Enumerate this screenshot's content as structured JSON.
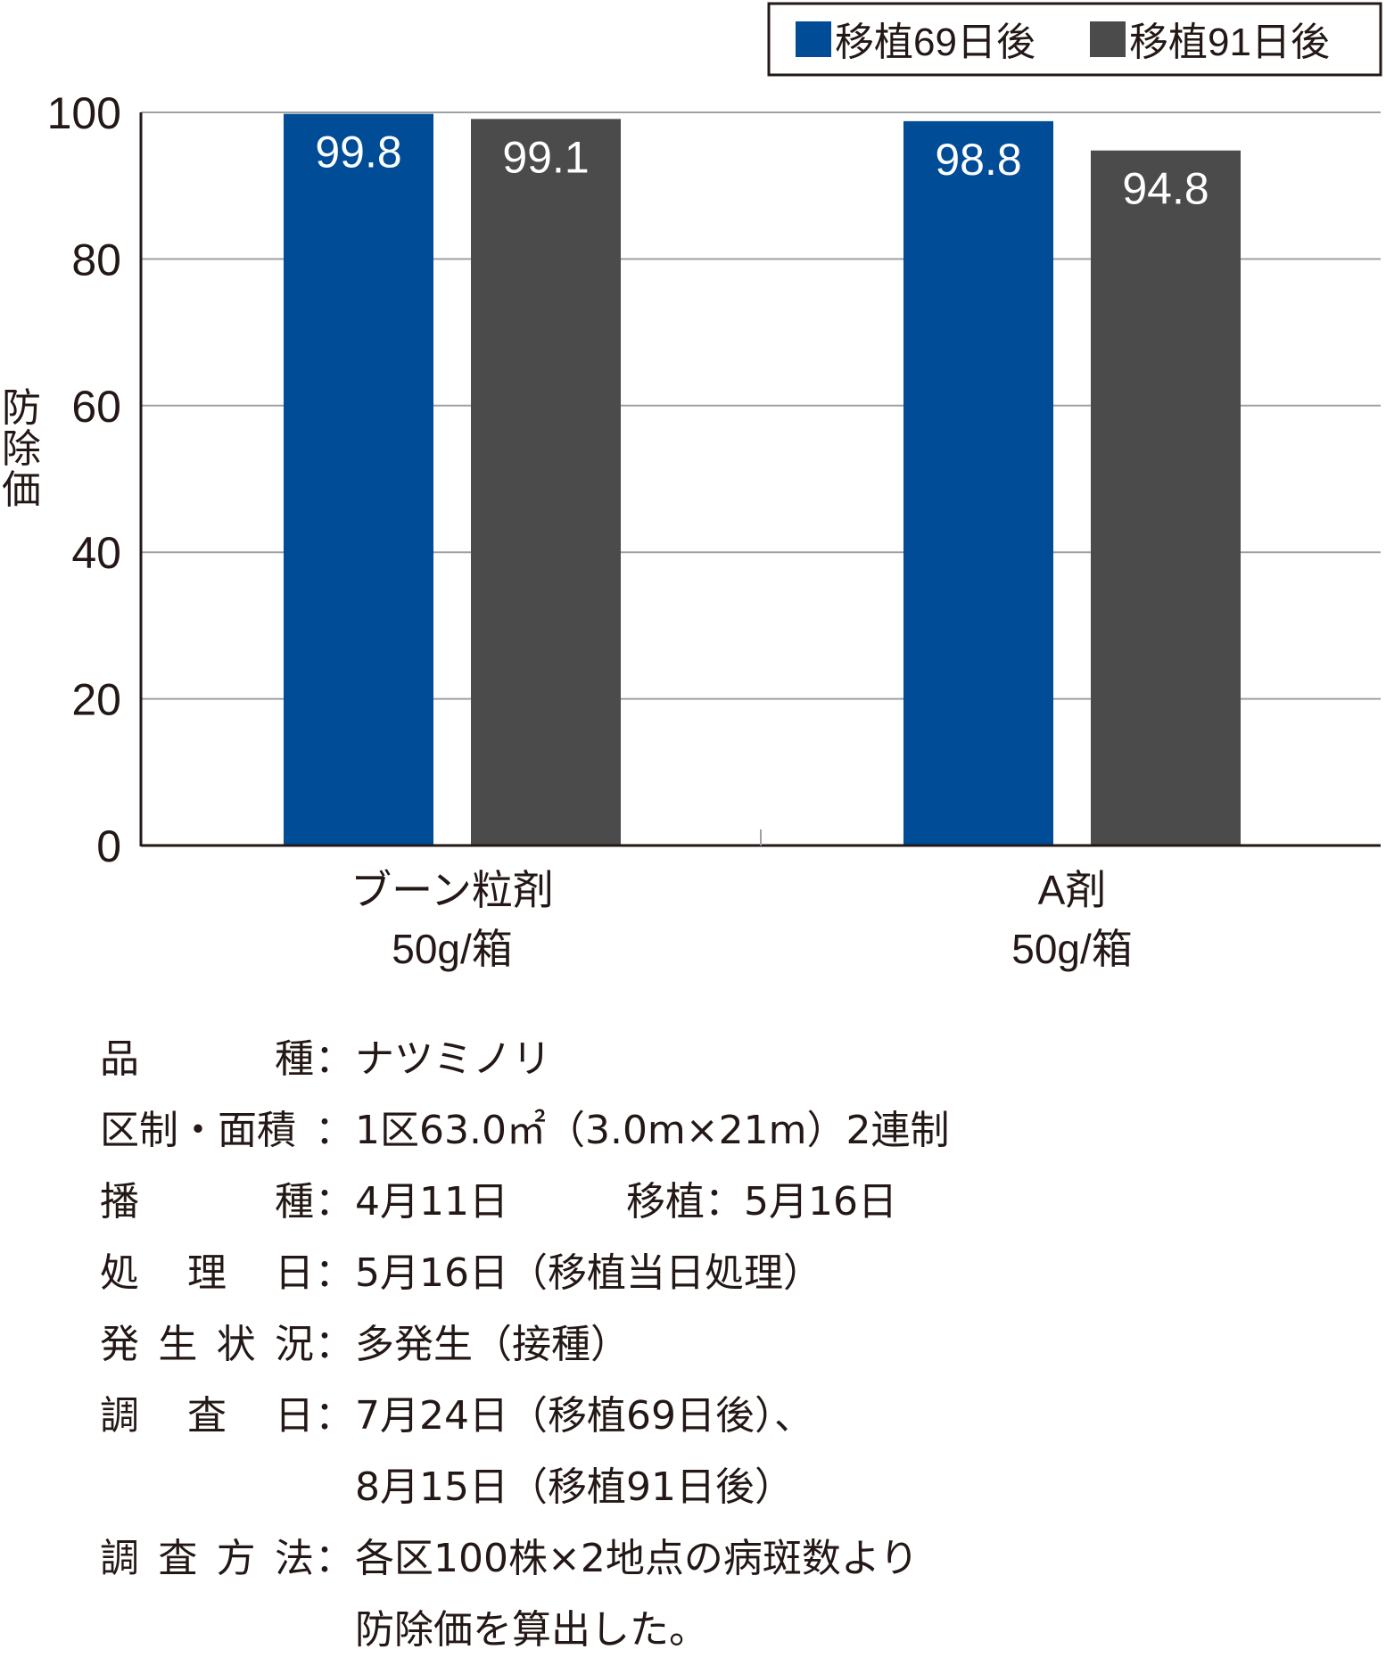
{
  "chart_data": {
    "type": "bar",
    "ylabel": "防除価",
    "ylim": [
      0,
      100
    ],
    "yticks": [
      0,
      20,
      40,
      60,
      80,
      100
    ],
    "grid": true,
    "legend_position": "top-right",
    "categories": [
      {
        "line1": "ブーン粒剤",
        "line2": "50g/箱"
      },
      {
        "line1": "A剤",
        "line2": "50g/箱"
      }
    ],
    "series": [
      {
        "name": "移植69日後",
        "color": "#004C97",
        "values": [
          99.8,
          98.8
        ],
        "labels": [
          "99.8",
          "98.8"
        ]
      },
      {
        "name": "移植91日後",
        "color": "#4B4B4B",
        "values": [
          99.1,
          94.8
        ],
        "labels": [
          "99.1",
          "94.8"
        ]
      }
    ]
  },
  "notes": [
    {
      "label": [
        "品",
        "種"
      ],
      "value": "ナツミノリ"
    },
    {
      "label": [
        "区制・面積"
      ],
      "value": "1区63.0㎡（3.0m×21m）2連制"
    },
    {
      "label": [
        "播",
        "種"
      ],
      "value": "4月11日　　　移植：5月16日"
    },
    {
      "label": [
        "処",
        "理",
        "日"
      ],
      "value": "5月16日（移植当日処理）"
    },
    {
      "label": [
        "発",
        "生",
        "状",
        "況"
      ],
      "value": "多発生（接種）"
    },
    {
      "label": [
        "調",
        "査",
        "日"
      ],
      "value": "7月24日（移植69日後）、",
      "cont": "8月15日（移植91日後）"
    },
    {
      "label": [
        "調",
        "査",
        "方",
        "法"
      ],
      "value": "各区100株×2地点の病斑数より",
      "cont": "防除価を算出した。"
    }
  ]
}
